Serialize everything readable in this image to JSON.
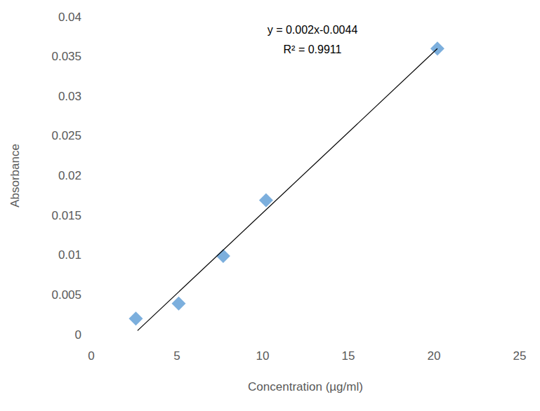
{
  "chart_data": {
    "type": "scatter",
    "x_label": "Concentration (µg/ml)",
    "y_label": "Absorbance",
    "annotations": [
      "y = 0.002x-0.0044",
      "R² = 0.9911"
    ],
    "xlim": [
      0,
      25
    ],
    "xticks": [
      0,
      5,
      10,
      15,
      20,
      25
    ],
    "ylim": [
      0,
      0.04
    ],
    "yticks": [
      0,
      0.005,
      0.01,
      0.015,
      0.02,
      0.025,
      0.03,
      0.035,
      0.04
    ],
    "grid": false,
    "series": [
      {
        "type": "scatter",
        "color": "#5b9bd5",
        "marker": "diamond",
        "x": [
          2.6,
          5.1,
          7.7,
          10.2,
          20.2
        ],
        "values": [
          0.002,
          0.0039,
          0.0099,
          0.0169,
          0.036
        ]
      },
      {
        "type": "line",
        "color": "#000000",
        "line_style": "solid",
        "x": [
          2.7,
          20.2
        ],
        "values": [
          0.0005,
          0.036
        ]
      }
    ]
  }
}
